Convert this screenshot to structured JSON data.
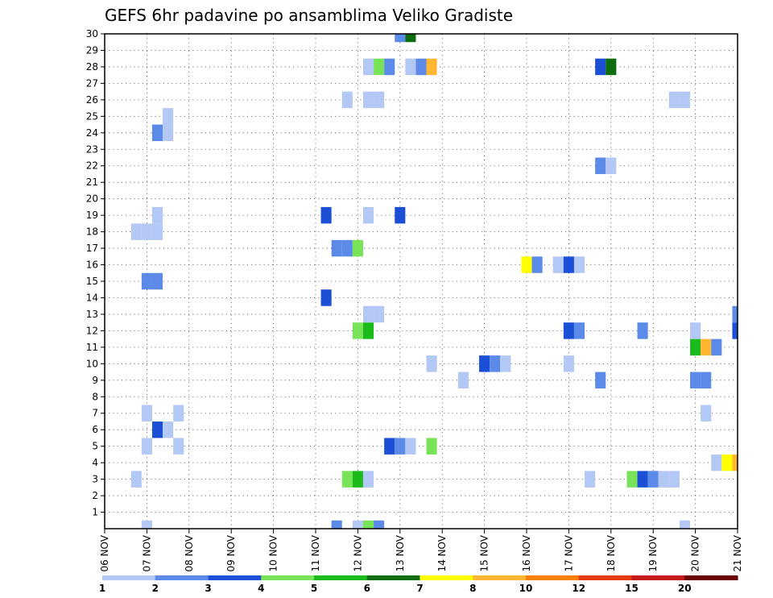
{
  "chart_data": {
    "type": "heatmap",
    "title": "GEFS 6hr padavine po ansamblima Veliko Gradiste",
    "xlabel": "",
    "ylabel": "",
    "x_ticks": [
      "06 NOV",
      "07 NOV",
      "08 NOV",
      "09 NOV",
      "10 NOV",
      "11 NOV",
      "12 NOV",
      "13 NOV",
      "14 NOV",
      "15 NOV",
      "16 NOV",
      "17 NOV",
      "18 NOV",
      "19 NOV",
      "20 NOV",
      "21 NOV"
    ],
    "x_range_days": [
      0,
      15
    ],
    "y_ticks": [
      "1",
      "2",
      "3",
      "4",
      "5",
      "6",
      "7",
      "8",
      "9",
      "10",
      "11",
      "12",
      "13",
      "14",
      "15",
      "16",
      "17",
      "18",
      "19",
      "20",
      "21",
      "22",
      "23",
      "24",
      "25",
      "26",
      "27",
      "28",
      "29",
      "30"
    ],
    "ylim": [
      0,
      30
    ],
    "grid": true,
    "grid_style": "dotted",
    "colorbar": {
      "labels": [
        "1",
        "2",
        "3",
        "4",
        "5",
        "6",
        "7",
        "8",
        "10",
        "12",
        "15",
        "20"
      ],
      "colors": [
        "#b3c8f5",
        "#5b8ae8",
        "#1a4fd6",
        "#78e358",
        "#1cbb1c",
        "#0e6d0e",
        "#ffff00",
        "#ffb733",
        "#ff8000",
        "#e63b0f",
        "#c21a1a",
        "#6b0000"
      ]
    },
    "cell_width_days": 0.25,
    "cells": [
      {
        "x": 1.0,
        "y": 0,
        "c": 0
      },
      {
        "x": 5.5,
        "y": 0,
        "c": 1
      },
      {
        "x": 6.0,
        "y": 0,
        "c": 0
      },
      {
        "x": 6.25,
        "y": 0,
        "c": 3
      },
      {
        "x": 6.5,
        "y": 0,
        "c": 1
      },
      {
        "x": 13.75,
        "y": 0,
        "c": 0
      },
      {
        "x": 0.75,
        "y": 3,
        "c": 0
      },
      {
        "x": 5.75,
        "y": 3,
        "c": 3
      },
      {
        "x": 6.0,
        "y": 3,
        "c": 4
      },
      {
        "x": 6.25,
        "y": 3,
        "c": 0
      },
      {
        "x": 11.5,
        "y": 3,
        "c": 0
      },
      {
        "x": 12.5,
        "y": 3,
        "c": 3
      },
      {
        "x": 12.75,
        "y": 3,
        "c": 2
      },
      {
        "x": 13.0,
        "y": 3,
        "c": 1
      },
      {
        "x": 13.25,
        "y": 3,
        "c": 0
      },
      {
        "x": 13.5,
        "y": 3,
        "c": 0
      },
      {
        "x": 14.5,
        "y": 4,
        "c": 0
      },
      {
        "x": 14.75,
        "y": 4,
        "c": 6
      },
      {
        "x": 15.0,
        "y": 4,
        "c": 7
      },
      {
        "x": 1.0,
        "y": 5,
        "c": 0
      },
      {
        "x": 1.75,
        "y": 5,
        "c": 0
      },
      {
        "x": 6.75,
        "y": 5,
        "c": 2
      },
      {
        "x": 7.0,
        "y": 5,
        "c": 1
      },
      {
        "x": 7.25,
        "y": 5,
        "c": 0
      },
      {
        "x": 7.75,
        "y": 5,
        "c": 3
      },
      {
        "x": 1.25,
        "y": 6,
        "c": 2
      },
      {
        "x": 1.5,
        "y": 6,
        "c": 0
      },
      {
        "x": 1.0,
        "y": 7,
        "c": 0
      },
      {
        "x": 1.75,
        "y": 7,
        "c": 0
      },
      {
        "x": 14.25,
        "y": 7,
        "c": 0
      },
      {
        "x": 8.5,
        "y": 9,
        "c": 0
      },
      {
        "x": 11.75,
        "y": 9,
        "c": 1
      },
      {
        "x": 14.0,
        "y": 9,
        "c": 1
      },
      {
        "x": 14.25,
        "y": 9,
        "c": 1
      },
      {
        "x": 7.75,
        "y": 10,
        "c": 0
      },
      {
        "x": 9.0,
        "y": 10,
        "c": 2
      },
      {
        "x": 9.25,
        "y": 10,
        "c": 1
      },
      {
        "x": 9.5,
        "y": 10,
        "c": 0
      },
      {
        "x": 11.0,
        "y": 10,
        "c": 0
      },
      {
        "x": 14.0,
        "y": 11,
        "c": 4
      },
      {
        "x": 14.25,
        "y": 11,
        "c": 7
      },
      {
        "x": 14.5,
        "y": 11,
        "c": 1
      },
      {
        "x": 6.0,
        "y": 12,
        "c": 3
      },
      {
        "x": 6.25,
        "y": 12,
        "c": 4
      },
      {
        "x": 11.0,
        "y": 12,
        "c": 2
      },
      {
        "x": 11.25,
        "y": 12,
        "c": 1
      },
      {
        "x": 12.75,
        "y": 12,
        "c": 1
      },
      {
        "x": 14.0,
        "y": 12,
        "c": 0
      },
      {
        "x": 15.0,
        "y": 12,
        "c": 2
      },
      {
        "x": 6.25,
        "y": 13,
        "c": 0
      },
      {
        "x": 6.5,
        "y": 13,
        "c": 0
      },
      {
        "x": 15.0,
        "y": 13,
        "c": 1
      },
      {
        "x": 5.25,
        "y": 14,
        "c": 2
      },
      {
        "x": 1.0,
        "y": 15,
        "c": 1
      },
      {
        "x": 1.25,
        "y": 15,
        "c": 1
      },
      {
        "x": 10.0,
        "y": 16,
        "c": 6
      },
      {
        "x": 10.25,
        "y": 16,
        "c": 1
      },
      {
        "x": 10.75,
        "y": 16,
        "c": 0
      },
      {
        "x": 11.0,
        "y": 16,
        "c": 2
      },
      {
        "x": 11.25,
        "y": 16,
        "c": 0
      },
      {
        "x": 5.5,
        "y": 17,
        "c": 1
      },
      {
        "x": 5.75,
        "y": 17,
        "c": 1
      },
      {
        "x": 6.0,
        "y": 17,
        "c": 3
      },
      {
        "x": 0.75,
        "y": 18,
        "c": 0
      },
      {
        "x": 1.0,
        "y": 18,
        "c": 0
      },
      {
        "x": 1.25,
        "y": 18,
        "c": 0
      },
      {
        "x": 1.25,
        "y": 19,
        "c": 0
      },
      {
        "x": 5.25,
        "y": 19,
        "c": 2
      },
      {
        "x": 6.25,
        "y": 19,
        "c": 0
      },
      {
        "x": 7.0,
        "y": 19,
        "c": 2
      },
      {
        "x": 11.75,
        "y": 22,
        "c": 1
      },
      {
        "x": 12.0,
        "y": 22,
        "c": 0
      },
      {
        "x": 1.25,
        "y": 24,
        "c": 1
      },
      {
        "x": 1.5,
        "y": 24,
        "c": 0
      },
      {
        "x": 1.5,
        "y": 25,
        "c": 0
      },
      {
        "x": 5.75,
        "y": 26,
        "c": 0
      },
      {
        "x": 6.25,
        "y": 26,
        "c": 0
      },
      {
        "x": 6.5,
        "y": 26,
        "c": 0
      },
      {
        "x": 13.5,
        "y": 26,
        "c": 0
      },
      {
        "x": 13.75,
        "y": 26,
        "c": 0
      },
      {
        "x": 6.25,
        "y": 28,
        "c": 0
      },
      {
        "x": 6.5,
        "y": 28,
        "c": 3
      },
      {
        "x": 6.75,
        "y": 28,
        "c": 1
      },
      {
        "x": 7.25,
        "y": 28,
        "c": 0
      },
      {
        "x": 7.5,
        "y": 28,
        "c": 1
      },
      {
        "x": 7.75,
        "y": 28,
        "c": 7
      },
      {
        "x": 11.75,
        "y": 28,
        "c": 2
      },
      {
        "x": 12.0,
        "y": 28,
        "c": 5
      },
      {
        "x": 7.0,
        "y": 30,
        "c": 1
      },
      {
        "x": 7.25,
        "y": 30,
        "c": 5
      }
    ]
  }
}
